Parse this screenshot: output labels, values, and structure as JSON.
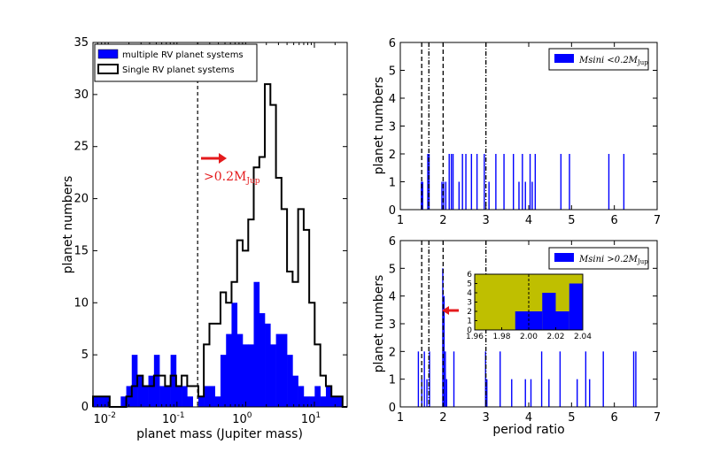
{
  "colors": {
    "multi": "#0000ff",
    "single": "#000000",
    "annotation": "#e41a1c",
    "inset_bg": "#bfbf00"
  },
  "chart_data": [
    {
      "type": "histogram",
      "xscale": "log",
      "xlabel": "planet mass (Jupiter mass)",
      "ylabel": "planet numbers",
      "xlim": [
        0.006,
        30
      ],
      "ylim": [
        0,
        35
      ],
      "yticks": [
        "0",
        "5",
        "10",
        "15",
        "20",
        "25",
        "30",
        "35"
      ],
      "xticks": [
        {
          "value": 0.01,
          "base": "10",
          "exp": "-2"
        },
        {
          "value": 0.1,
          "base": "10",
          "exp": "-1"
        },
        {
          "value": 1,
          "base": "10",
          "exp": "0"
        },
        {
          "value": 10,
          "base": "10",
          "exp": "1"
        }
      ],
      "legend": {
        "position": "top-left",
        "entries": [
          {
            "label": "multiple RV planet systems",
            "style": "filled"
          },
          {
            "label": "Single RV planet systems",
            "style": "step"
          }
        ]
      },
      "vline": 0.2,
      "annotation": {
        "text": ">0.2M",
        "sub": "Jup",
        "arrow": "right"
      },
      "bin_edges": [
        0.006,
        0.0072,
        0.0087,
        0.0105,
        0.0126,
        0.0152,
        0.0183,
        0.022,
        0.0265,
        0.0319,
        0.0384,
        0.0463,
        0.0557,
        0.0671,
        0.0808,
        0.0973,
        0.117,
        0.141,
        0.17,
        0.205,
        0.246,
        0.297,
        0.357,
        0.43,
        0.518,
        0.623,
        0.751,
        0.904,
        1.09,
        1.31,
        1.58,
        1.9,
        2.29,
        2.76,
        3.32,
        4.0,
        4.82,
        5.8,
        6.99,
        8.41,
        10.1,
        12.2,
        14.7,
        17.7,
        21.3,
        25.7,
        30.0
      ],
      "series": [
        {
          "name": "multiple RV planet systems",
          "style": "filled",
          "counts": [
            1,
            1,
            1,
            0,
            0,
            1,
            2,
            5,
            3,
            2,
            3,
            5,
            2,
            2,
            5,
            2,
            2,
            1,
            0,
            1,
            2,
            2,
            1,
            5,
            7,
            10,
            7,
            6,
            6,
            12,
            9,
            8,
            6,
            7,
            7,
            5,
            3,
            2,
            1,
            1,
            2,
            1,
            2,
            1,
            1,
            0
          ]
        },
        {
          "name": "Single RV planet systems",
          "style": "step",
          "counts": [
            1,
            1,
            1,
            0,
            0,
            0,
            1,
            2,
            3,
            2,
            2,
            3,
            3,
            2,
            3,
            2,
            3,
            2,
            2,
            1,
            6,
            8,
            8,
            11,
            10,
            12,
            16,
            15,
            18,
            23,
            24,
            31,
            29,
            22,
            19,
            13,
            12,
            19,
            17,
            10,
            6,
            3,
            2,
            1,
            1,
            0
          ]
        }
      ]
    },
    {
      "type": "histogram",
      "xlabel": "",
      "ylabel": "planet numbers",
      "xlim": [
        1,
        7
      ],
      "ylim": [
        0,
        6
      ],
      "xticks": [
        "1",
        "2",
        "3",
        "4",
        "5",
        "6",
        "7"
      ],
      "yticks": [
        "0",
        "1",
        "2",
        "3",
        "4",
        "5",
        "6"
      ],
      "legend": {
        "position": "top-right",
        "label": "Msini",
        "op": " <0.2M",
        "sub": "Jup"
      },
      "vlines_dashed": [
        1.5,
        2.0
      ],
      "vlines_dashdot": [
        1.667,
        3.0
      ],
      "bars": [
        {
          "x": 1.49,
          "h": 1
        },
        {
          "x": 1.52,
          "h": 1
        },
        {
          "x": 1.64,
          "h": 2
        },
        {
          "x": 1.67,
          "h": 2
        },
        {
          "x": 1.97,
          "h": 1
        },
        {
          "x": 2.01,
          "h": 1
        },
        {
          "x": 2.06,
          "h": 1
        },
        {
          "x": 2.14,
          "h": 2
        },
        {
          "x": 2.19,
          "h": 2
        },
        {
          "x": 2.23,
          "h": 2
        },
        {
          "x": 2.37,
          "h": 1
        },
        {
          "x": 2.45,
          "h": 2
        },
        {
          "x": 2.53,
          "h": 2
        },
        {
          "x": 2.66,
          "h": 2
        },
        {
          "x": 2.79,
          "h": 2
        },
        {
          "x": 2.96,
          "h": 2
        },
        {
          "x": 3.07,
          "h": 1
        },
        {
          "x": 3.23,
          "h": 2
        },
        {
          "x": 3.42,
          "h": 2
        },
        {
          "x": 3.64,
          "h": 2
        },
        {
          "x": 3.77,
          "h": 1
        },
        {
          "x": 3.85,
          "h": 2
        },
        {
          "x": 3.92,
          "h": 1
        },
        {
          "x": 4.03,
          "h": 2
        },
        {
          "x": 4.08,
          "h": 1
        },
        {
          "x": 4.15,
          "h": 2
        },
        {
          "x": 4.75,
          "h": 2
        },
        {
          "x": 4.95,
          "h": 2
        },
        {
          "x": 5.87,
          "h": 2
        },
        {
          "x": 6.22,
          "h": 2
        }
      ]
    },
    {
      "type": "histogram",
      "xlabel": "period ratio",
      "ylabel": "planet numbers",
      "xlim": [
        1,
        7
      ],
      "ylim": [
        0,
        6
      ],
      "xticks": [
        "1",
        "2",
        "3",
        "4",
        "5",
        "6",
        "7"
      ],
      "yticks": [
        "0",
        "1",
        "2",
        "3",
        "4",
        "5",
        "6"
      ],
      "legend": {
        "position": "top-right",
        "label": "Msini",
        "op": " >0.2M",
        "sub": "Jup"
      },
      "vlines_dashed": [
        1.5,
        2.0
      ],
      "vlines_dashdot": [
        1.667,
        3.0
      ],
      "arrow_at": 2.0,
      "bars": [
        {
          "x": 1.42,
          "h": 2
        },
        {
          "x": 1.5,
          "h": 1
        },
        {
          "x": 1.56,
          "h": 2
        },
        {
          "x": 1.62,
          "h": 1
        },
        {
          "x": 1.68,
          "h": 2
        },
        {
          "x": 1.99,
          "h": 5
        },
        {
          "x": 2.02,
          "h": 4
        },
        {
          "x": 2.05,
          "h": 2
        },
        {
          "x": 2.08,
          "h": 1
        },
        {
          "x": 2.25,
          "h": 2
        },
        {
          "x": 2.99,
          "h": 2
        },
        {
          "x": 3.02,
          "h": 1
        },
        {
          "x": 3.33,
          "h": 2
        },
        {
          "x": 3.6,
          "h": 1
        },
        {
          "x": 3.92,
          "h": 1
        },
        {
          "x": 4.05,
          "h": 1
        },
        {
          "x": 4.3,
          "h": 2
        },
        {
          "x": 4.47,
          "h": 1
        },
        {
          "x": 4.73,
          "h": 2
        },
        {
          "x": 5.13,
          "h": 1
        },
        {
          "x": 5.33,
          "h": 2
        },
        {
          "x": 5.42,
          "h": 1
        },
        {
          "x": 5.74,
          "h": 2
        },
        {
          "x": 6.45,
          "h": 2
        },
        {
          "x": 6.5,
          "h": 2
        }
      ],
      "inset": {
        "xlim": [
          1.96,
          2.04
        ],
        "ylim": [
          0,
          6
        ],
        "xticks": [
          "1.96",
          "1.98",
          "2.00",
          "2.02",
          "2.04"
        ],
        "yticks": [
          "0",
          "1",
          "2",
          "3",
          "4",
          "5",
          "6"
        ],
        "vline": 2.0,
        "bin_edges": [
          1.99,
          2.0,
          2.01,
          2.02,
          2.03,
          2.04
        ],
        "counts": [
          2,
          2,
          4,
          2,
          5
        ]
      }
    }
  ]
}
